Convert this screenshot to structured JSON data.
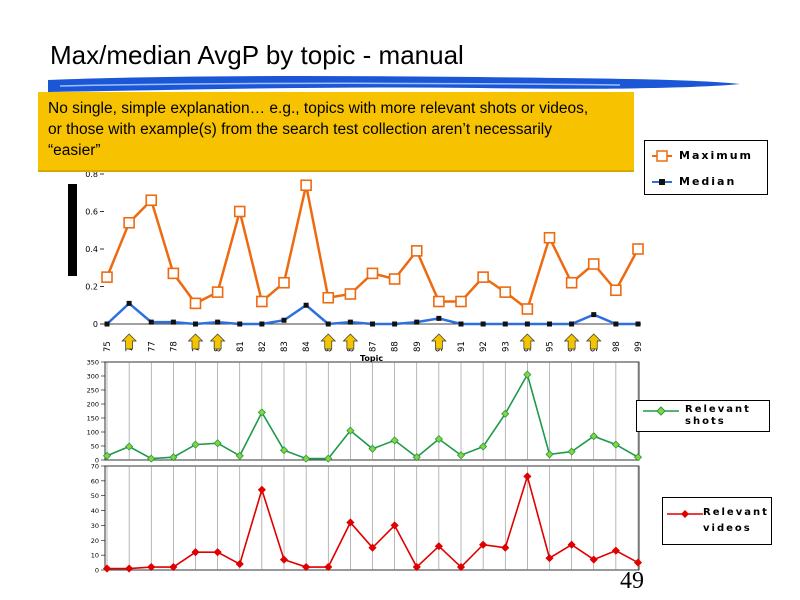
{
  "slide": {
    "title": "Max/median AvgP by topic - manual",
    "callout_lines": [
      "No single, simple explanation… e.g., topics with more relevant shots or videos,",
      "or those with example(s) from the search test collection aren’t necessarily",
      "“easier”"
    ],
    "page_number": "49",
    "colors": {
      "callout": "#f7c300",
      "brush": "#1a56d6",
      "maximum": "#ee6a10",
      "median": "#2e6fe0",
      "shots": "#1e9a4a",
      "videos": "#e00000",
      "arrow_fill": "#f5c400"
    }
  },
  "legends": {
    "top": {
      "maximum": "Maximum",
      "median": "Median"
    },
    "shots": {
      "line1": "Relevant",
      "line2": "shots"
    },
    "videos": {
      "line1": "Relevant",
      "line2": "videos"
    }
  },
  "chart_data": [
    {
      "type": "line",
      "xlabel": "Topic",
      "ylabel": "",
      "ylim": [
        0,
        0.8
      ],
      "yticks": [
        "0",
        "0.2",
        "0.4",
        "0.6",
        "0.8"
      ],
      "x": [
        "75",
        "76",
        "77",
        "78",
        "79",
        "80",
        "81",
        "82",
        "83",
        "84",
        "85",
        "86",
        "87",
        "88",
        "89",
        "90",
        "91",
        "92",
        "93",
        "94",
        "95",
        "96",
        "97",
        "98",
        "99"
      ],
      "series": [
        {
          "name": "Maximum",
          "values": [
            0.25,
            0.54,
            0.66,
            0.27,
            0.11,
            0.17,
            0.6,
            0.12,
            0.22,
            0.74,
            0.14,
            0.16,
            0.27,
            0.24,
            0.39,
            0.12,
            0.12,
            0.25,
            0.17,
            0.08,
            0.46,
            0.22,
            0.32,
            0.18,
            0.4
          ]
        },
        {
          "name": "Median",
          "values": [
            0.0,
            0.11,
            0.01,
            0.01,
            0.0,
            0.01,
            0.0,
            0.0,
            0.02,
            0.1,
            0.0,
            0.01,
            0.0,
            0.0,
            0.01,
            0.03,
            0.0,
            0.0,
            0.0,
            0.0,
            0.0,
            0.0,
            0.05,
            0.0,
            0.0
          ]
        }
      ],
      "arrow_topics": [
        "76",
        "79",
        "80",
        "85",
        "86",
        "90",
        "94",
        "96",
        "97"
      ]
    },
    {
      "type": "line",
      "ylim": [
        0,
        350
      ],
      "yticks": [
        "0",
        "50",
        "100",
        "150",
        "200",
        "250",
        "300",
        "350"
      ],
      "series": [
        {
          "name": "Relevant shots",
          "values": [
            15,
            48,
            5,
            10,
            55,
            60,
            15,
            170,
            35,
            5,
            5,
            105,
            40,
            70,
            10,
            75,
            17,
            48,
            165,
            305,
            20,
            30,
            85,
            55,
            10
          ]
        }
      ]
    },
    {
      "type": "line",
      "ylim": [
        0,
        70
      ],
      "yticks": [
        "0",
        "10",
        "20",
        "30",
        "40",
        "50",
        "60",
        "70"
      ],
      "series": [
        {
          "name": "Relevant videos",
          "values": [
            1,
            1,
            2,
            2,
            12,
            12,
            4,
            54,
            7,
            2,
            2,
            32,
            15,
            30,
            2,
            16,
            2,
            17,
            15,
            63,
            8,
            17,
            7,
            13,
            5
          ]
        }
      ]
    }
  ]
}
